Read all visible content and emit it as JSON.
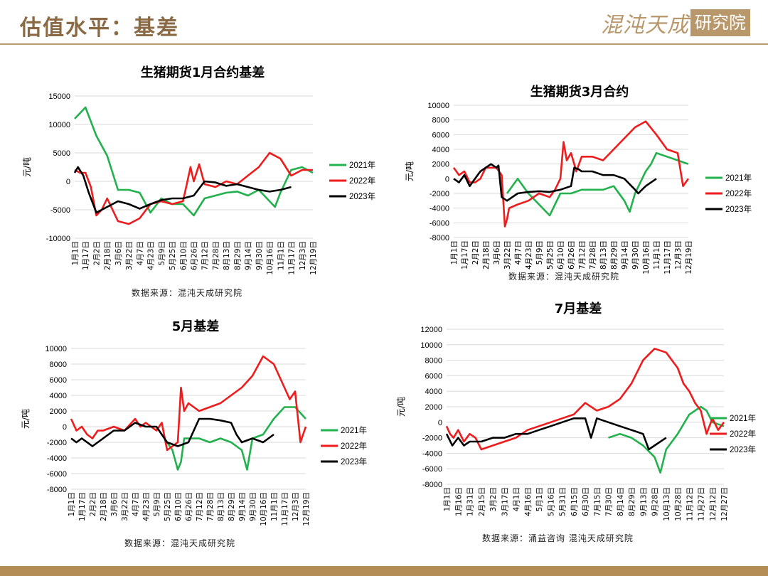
{
  "header": {
    "title": "估值水平：基差",
    "logo_text": "混沌天成",
    "logo_box": "研究院"
  },
  "colors": {
    "s2021": "#22b14c",
    "s2022": "#ee1c1c",
    "s2023": "#000000",
    "accent": "#b8976a"
  },
  "chart_data": [
    {
      "type": "line",
      "title": "生猪期货1月合约基差",
      "ylabel": "元/吨",
      "ylim": [
        -10000,
        15000
      ],
      "yticks": [
        15000,
        10000,
        5000,
        0,
        -5000,
        -10000
      ],
      "grid": true,
      "legend_position": "right",
      "source": "数据来源：混沌天成研究院",
      "xtick_labels": [
        "1月1日",
        "1月17日",
        "2月2日",
        "2月18日",
        "3月6日",
        "3月22日",
        "4月7日",
        "4月23日",
        "5月9日",
        "5月25日",
        "6月10日",
        "6月26日",
        "7月12日",
        "7月28日",
        "8月13日",
        "8月29日",
        "9月14日",
        "9月30日",
        "10月16日",
        "11月1日",
        "11月17日",
        "12月3日",
        "12月19日"
      ],
      "series": [
        {
          "name": "2021年",
          "color": "#22b14c",
          "x": [
            1,
            2,
            3,
            4,
            5,
            6,
            7,
            8,
            9,
            10,
            11,
            12,
            13,
            14,
            15,
            16,
            17,
            18,
            19,
            19.5,
            20,
            21,
            22,
            23
          ],
          "y": [
            11000,
            13000,
            8000,
            4500,
            -1500,
            -1500,
            -2000,
            -5500,
            -3000,
            -4000,
            -4000,
            -6000,
            -3000,
            -2500,
            -2000,
            -1800,
            -2500,
            -1500,
            -3500,
            -4500,
            -2000,
            2000,
            2500,
            1500
          ]
        },
        {
          "name": "2022年",
          "color": "#ee1c1c",
          "x": [
            1,
            1.5,
            2,
            2.5,
            3,
            3.5,
            4,
            5,
            6,
            7,
            8,
            9,
            10,
            11,
            11.3,
            11.7,
            12,
            12.5,
            13,
            14,
            15,
            16,
            17,
            18,
            19,
            20,
            21,
            22,
            23
          ],
          "y": [
            2000,
            1500,
            1500,
            -1000,
            -6000,
            -5000,
            -3000,
            -7000,
            -7500,
            -6500,
            -4000,
            -3500,
            -4000,
            -3500,
            -1000,
            2500,
            0,
            3000,
            -500,
            -1000,
            0,
            -500,
            1000,
            2500,
            5000,
            4000,
            1000,
            2000,
            2000
          ]
        },
        {
          "name": "2023年",
          "color": "#000000",
          "x": [
            1,
            1.3,
            1.8,
            2.3,
            3,
            4,
            5,
            6,
            7,
            8,
            9,
            10,
            11,
            12,
            13,
            14,
            15,
            16,
            17,
            18,
            19,
            20,
            21
          ],
          "y": [
            1500,
            2500,
            1000,
            -2000,
            -5500,
            -4500,
            -3500,
            -4000,
            -4800,
            -4000,
            -3300,
            -3000,
            -3000,
            -2500,
            0,
            -200,
            -800,
            -500,
            -1000,
            -1500,
            -1800,
            -1500,
            -1000
          ]
        }
      ]
    },
    {
      "type": "line",
      "title": "生猪期货3月合约",
      "ylabel": "元/吨",
      "ylim": [
        -8000,
        10000
      ],
      "yticks": [
        10000,
        8000,
        6000,
        4000,
        2000,
        0,
        -2000,
        -4000,
        -6000,
        -8000
      ],
      "grid": true,
      "legend_position": "right",
      "source": "数据来源：混沌天成研究院",
      "xtick_labels": [
        "1月1日",
        "1月17日",
        "2月2日",
        "2月18日",
        "3月6日",
        "3月22日",
        "4月7日",
        "4月23日",
        "5月9日",
        "5月25日",
        "6月10日",
        "6月26日",
        "7月12日",
        "7月28日",
        "8月13日",
        "8月29日",
        "9月14日",
        "9月30日",
        "10月16日",
        "11月1日",
        "11月17日",
        "12月3日",
        "12月19日"
      ],
      "series": [
        {
          "name": "2021年",
          "color": "#22b14c",
          "x": [
            6,
            7,
            8,
            9,
            10,
            11,
            12,
            13,
            14,
            15,
            16,
            17,
            17.5,
            18,
            19,
            19.5,
            20,
            21,
            22,
            23
          ],
          "y": [
            -2000,
            0,
            -2000,
            -3500,
            -5000,
            -2000,
            -2000,
            -1500,
            -1500,
            -1500,
            -1000,
            -3000,
            -4500,
            -2000,
            1000,
            2000,
            3500,
            3000,
            2500,
            2000
          ]
        },
        {
          "name": "2022年",
          "color": "#ee1c1c",
          "x": [
            1,
            1.5,
            2,
            2.5,
            3,
            3.5,
            4,
            5,
            5.5,
            5.8,
            6,
            6.2,
            7,
            8,
            9,
            10,
            10.5,
            11,
            11.3,
            11.6,
            12,
            12.5,
            13,
            14,
            15,
            16,
            17,
            18,
            19,
            20,
            21,
            22,
            22.5,
            23
          ],
          "y": [
            1500,
            500,
            1000,
            -500,
            -500,
            0,
            1500,
            1500,
            500,
            -6500,
            -5500,
            -4000,
            -3500,
            -3000,
            -2000,
            -2500,
            -1500,
            0,
            5000,
            2500,
            3500,
            1000,
            3000,
            3000,
            2500,
            4000,
            5500,
            7000,
            7800,
            6000,
            4000,
            3500,
            -1000,
            0
          ]
        },
        {
          "name": "2023年",
          "color": "#000000",
          "x": [
            1,
            1.5,
            2,
            2.5,
            3,
            3.5,
            4,
            4.5,
            5,
            5.2,
            5.5,
            6,
            7,
            8,
            9,
            10,
            11,
            12,
            12.3,
            12.7,
            13,
            14,
            15,
            16,
            17,
            18,
            18.3,
            19,
            20
          ],
          "y": [
            0,
            -500,
            500,
            -1000,
            0,
            1000,
            1500,
            2000,
            1500,
            1800,
            -2500,
            -3000,
            -2000,
            -1800,
            -1700,
            -1800,
            -1500,
            -1000,
            1500,
            1300,
            1000,
            1000,
            500,
            500,
            0,
            -1500,
            -2000,
            -1000,
            0
          ]
        }
      ]
    },
    {
      "type": "line",
      "title": "5月基差",
      "ylabel": "元/吨",
      "ylim": [
        -8000,
        10000
      ],
      "yticks": [
        10000,
        8000,
        6000,
        4000,
        2000,
        0,
        -2000,
        -4000,
        -6000,
        -8000
      ],
      "grid": true,
      "legend_position": "right",
      "source": "数据来源：混沌天成研究院",
      "xtick_labels": [
        "1月1日",
        "1月17日",
        "2月2日",
        "2月18日",
        "3月6日",
        "3月22日",
        "4月7日",
        "4月23日",
        "5月9日",
        "5月25日",
        "6月10日",
        "6月26日",
        "7月12日",
        "7月28日",
        "8月13日",
        "8月29日",
        "9月14日",
        "9月30日",
        "10月16日",
        "11月1日",
        "11月17日",
        "12月3日",
        "12月19日"
      ],
      "series": [
        {
          "name": "2021年",
          "color": "#22b14c",
          "x": [
            10,
            10.5,
            11,
            11.3,
            11.6,
            12,
            13,
            14,
            15,
            16,
            17,
            17.5,
            18,
            19,
            20,
            21,
            22,
            23
          ],
          "y": [
            -2000,
            -3000,
            -5500,
            -4500,
            -1500,
            -1500,
            -1500,
            -2000,
            -1500,
            -2000,
            -3000,
            -5500,
            -1500,
            -1000,
            1000,
            2500,
            2500,
            1000
          ]
        },
        {
          "name": "2022年",
          "color": "#ee1c1c",
          "x": [
            1,
            1.5,
            2,
            2.5,
            3,
            3.5,
            4,
            5,
            6,
            7,
            7.5,
            8,
            9,
            9.5,
            10,
            10.5,
            11,
            11.3,
            11.6,
            12,
            13,
            14,
            15,
            16,
            17,
            18,
            19,
            20,
            21,
            21.5,
            22,
            22.5,
            23
          ],
          "y": [
            1000,
            -500,
            0,
            -1000,
            -1500,
            -500,
            -500,
            0,
            -500,
            1000,
            0,
            500,
            -500,
            500,
            -3000,
            -2500,
            -2000,
            5000,
            2000,
            3000,
            2000,
            2500,
            3000,
            4000,
            5000,
            6500,
            9000,
            8000,
            5000,
            3500,
            4500,
            -2000,
            0
          ]
        },
        {
          "name": "2023年",
          "color": "#000000",
          "x": [
            1,
            1.5,
            2,
            3,
            4,
            5,
            6,
            7,
            8,
            9,
            10,
            11,
            12,
            13,
            14,
            15,
            16,
            16.5,
            17,
            18,
            19,
            20
          ],
          "y": [
            -1500,
            -2000,
            -1500,
            -2500,
            -1500,
            -500,
            -500,
            500,
            0,
            0,
            -2000,
            -2500,
            -2000,
            1000,
            1000,
            800,
            500,
            -1000,
            -2000,
            -1500,
            -2000,
            -1000
          ]
        }
      ]
    },
    {
      "type": "line",
      "title": "7月基差",
      "ylabel": "元/吨",
      "ylim": [
        -8000,
        12000
      ],
      "yticks": [
        12000,
        10000,
        8000,
        6000,
        4000,
        2000,
        0,
        -2000,
        -4000,
        -6000,
        -8000
      ],
      "grid": true,
      "legend_position": "right",
      "source": "数据来源：涌益咨询 混沌天成研究院",
      "xtick_labels": [
        "1月1日",
        "1月16日",
        "1月31日",
        "2月15日",
        "3月2日",
        "3月17日",
        "4月1日",
        "4月16日",
        "5月1日",
        "5月16日",
        "5月31日",
        "6月15日",
        "6月30日",
        "7月15日",
        "7月30日",
        "8月14日",
        "8月29日",
        "9月13日",
        "9月28日",
        "10月13日",
        "10月28日",
        "11月12日",
        "11月27日",
        "12月12日",
        "12月27日"
      ],
      "series": [
        {
          "name": "2021年",
          "color": "#22b14c",
          "x": [
            15,
            16,
            17,
            18,
            19,
            19.5,
            20,
            21,
            22,
            23,
            23.5,
            24,
            25
          ],
          "y": [
            -2000,
            -1500,
            -2000,
            -3000,
            -4500,
            -6500,
            -3500,
            -1500,
            1000,
            2000,
            1500,
            0,
            -500
          ]
        },
        {
          "name": "2022年",
          "color": "#ee1c1c",
          "x": [
            1,
            1.3,
            1.6,
            2,
            2.5,
            3,
            3.5,
            4,
            5,
            6,
            7,
            8,
            9,
            10,
            11,
            12,
            13,
            14,
            15,
            16,
            17,
            18,
            19,
            20,
            21,
            21.5,
            22,
            22.5,
            23,
            23.5,
            24,
            24.5,
            25
          ],
          "y": [
            -500,
            -1500,
            -2000,
            -1000,
            -2500,
            -1500,
            -2000,
            -3500,
            -3000,
            -2500,
            -2000,
            -1000,
            -500,
            0,
            500,
            1000,
            2500,
            1500,
            2000,
            3000,
            5000,
            8000,
            9500,
            9000,
            7000,
            5000,
            4000,
            2500,
            1500,
            -1500,
            500,
            -1000,
            0
          ]
        },
        {
          "name": "2023年",
          "color": "#000000",
          "x": [
            1,
            1.5,
            2,
            2.5,
            3,
            4,
            5,
            6,
            7,
            8,
            9,
            10,
            11,
            12,
            13,
            13.5,
            14,
            15,
            16,
            17,
            18,
            18.5,
            19,
            20
          ],
          "y": [
            -1500,
            -3000,
            -2000,
            -3000,
            -2500,
            -2500,
            -2000,
            -2000,
            -1500,
            -1500,
            -1000,
            -500,
            0,
            500,
            500,
            -2000,
            500,
            0,
            -500,
            -1000,
            -1500,
            -3500,
            -3000,
            -2000
          ]
        }
      ]
    }
  ]
}
